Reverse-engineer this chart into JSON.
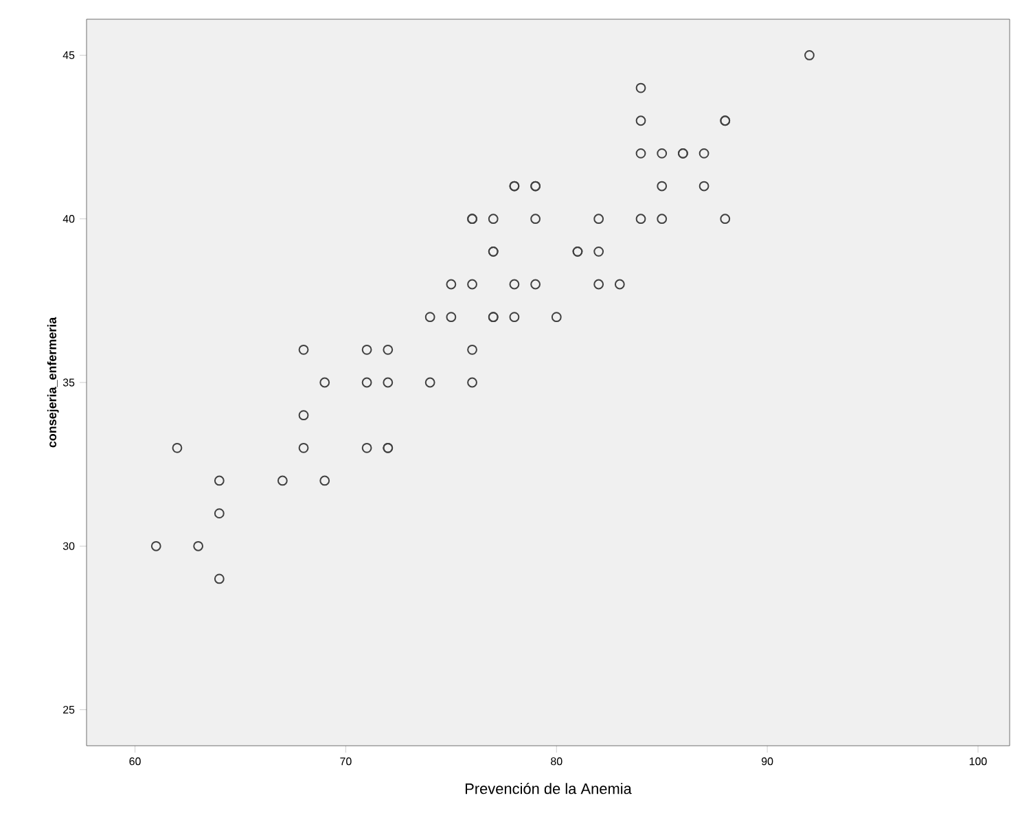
{
  "chart_data": {
    "type": "scatter",
    "xlabel": "Prevención de la Anemia",
    "ylabel": "consejeria_enfermeria",
    "x": [
      61,
      62,
      63,
      64,
      64,
      64,
      67,
      68,
      68,
      68,
      69,
      69,
      71,
      71,
      71,
      72,
      72,
      72,
      72,
      74,
      74,
      75,
      75,
      76,
      76,
      76,
      76,
      76,
      77,
      77,
      77,
      77,
      77,
      78,
      78,
      78,
      78,
      79,
      79,
      79,
      79,
      80,
      81,
      81,
      82,
      82,
      82,
      83,
      84,
      84,
      84,
      84,
      85,
      85,
      85,
      86,
      86,
      87,
      87,
      88,
      88,
      88,
      92
    ],
    "series": [
      {
        "color": "#404040",
        "values": [
          30,
          33,
          30,
          32,
          31,
          29,
          32,
          36,
          34,
          33,
          35,
          32,
          36,
          35,
          33,
          36,
          35,
          33,
          33,
          37,
          35,
          38,
          37,
          40,
          40,
          38,
          36,
          35,
          40,
          39,
          39,
          37,
          37,
          41,
          41,
          38,
          37,
          41,
          41,
          40,
          38,
          37,
          39,
          39,
          40,
          39,
          38,
          38,
          44,
          43,
          42,
          40,
          42,
          41,
          40,
          42,
          42,
          42,
          41,
          43,
          43,
          40,
          45
        ]
      }
    ],
    "xlim": [
      57.7,
      101.5
    ],
    "ylim": [
      23.9,
      46.1
    ],
    "xticks": [
      60,
      70,
      80,
      90,
      100
    ],
    "yticks": [
      25,
      30,
      35,
      40,
      45
    ],
    "grid": false,
    "marker": "circle"
  }
}
